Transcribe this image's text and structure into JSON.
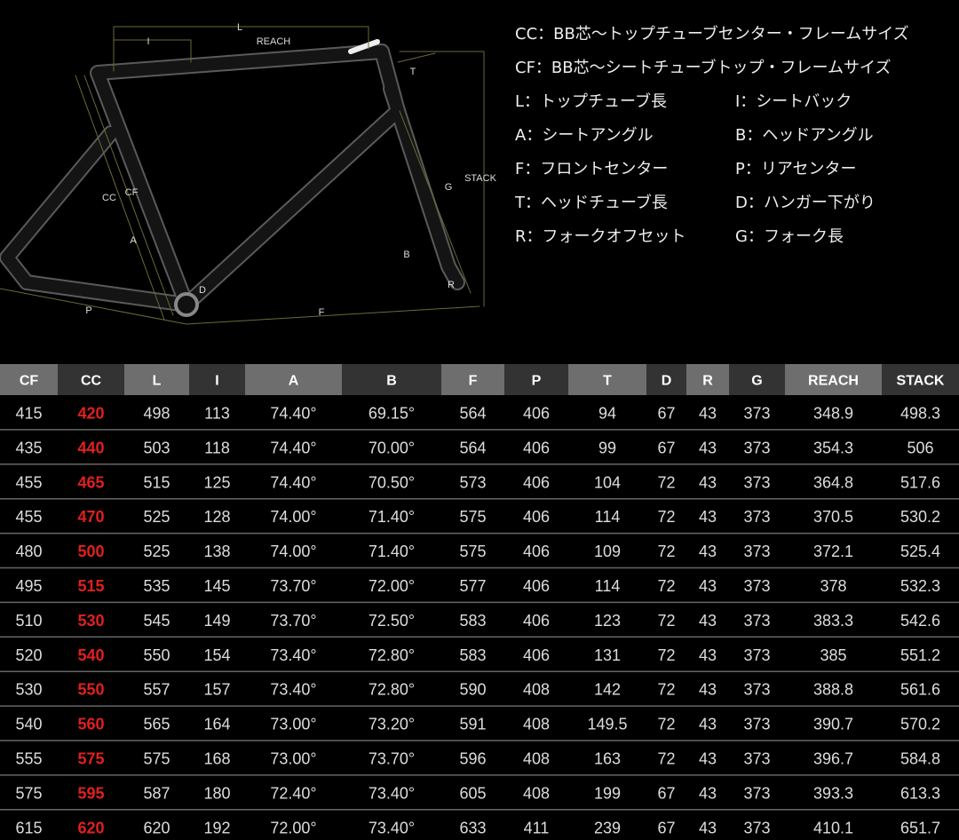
{
  "diagram": {
    "labels": [
      "L",
      "I",
      "REACH",
      "T",
      "STACK",
      "G",
      "CC",
      "CF",
      "A",
      "B",
      "D",
      "R",
      "P",
      "F"
    ]
  },
  "legend": [
    "CC：BB芯〜トップチューブセンター・フレームサイズ",
    "CF：BB芯〜シートチューブトップ・フレームサイズ",
    "L：トップチューブ長",
    "I：シートバック",
    "A：シートアングル",
    "B：ヘッドアングル",
    "F：フロントセンター",
    "P：リアセンター",
    "T：ヘッドチューブ長",
    "D：ハンガー下がり",
    "R：フォークオフセット",
    "G：フォーク長"
  ],
  "table": {
    "header": [
      "CF",
      "CC",
      "L",
      "I",
      "A",
      "B",
      "F",
      "P",
      "T",
      "D",
      "R",
      "G",
      "REACH",
      "STACK"
    ],
    "rows": [
      [
        "415",
        "420",
        "498",
        "113",
        "74.40°",
        "69.15°",
        "564",
        "406",
        "94",
        "67",
        "43",
        "373",
        "348.9",
        "498.3"
      ],
      [
        "435",
        "440",
        "503",
        "118",
        "74.40°",
        "70.00°",
        "564",
        "406",
        "99",
        "67",
        "43",
        "373",
        "354.3",
        "506"
      ],
      [
        "455",
        "465",
        "515",
        "125",
        "74.40°",
        "70.50°",
        "573",
        "406",
        "104",
        "72",
        "43",
        "373",
        "364.8",
        "517.6"
      ],
      [
        "455",
        "470",
        "525",
        "128",
        "74.00°",
        "71.40°",
        "575",
        "406",
        "114",
        "72",
        "43",
        "373",
        "370.5",
        "530.2"
      ],
      [
        "480",
        "500",
        "525",
        "138",
        "74.00°",
        "71.40°",
        "575",
        "406",
        "109",
        "72",
        "43",
        "373",
        "372.1",
        "525.4"
      ],
      [
        "495",
        "515",
        "535",
        "145",
        "73.70°",
        "72.00°",
        "577",
        "406",
        "114",
        "72",
        "43",
        "373",
        "378",
        "532.3"
      ],
      [
        "510",
        "530",
        "545",
        "149",
        "73.70°",
        "72.50°",
        "583",
        "406",
        "123",
        "72",
        "43",
        "373",
        "383.3",
        "542.6"
      ],
      [
        "520",
        "540",
        "550",
        "154",
        "73.40°",
        "72.80°",
        "583",
        "406",
        "131",
        "72",
        "43",
        "373",
        "385",
        "551.2"
      ],
      [
        "530",
        "550",
        "557",
        "157",
        "73.40°",
        "72.80°",
        "590",
        "408",
        "142",
        "72",
        "43",
        "373",
        "388.8",
        "561.6"
      ],
      [
        "540",
        "560",
        "565",
        "164",
        "73.00°",
        "73.20°",
        "591",
        "408",
        "149.5",
        "72",
        "43",
        "373",
        "390.7",
        "570.2"
      ],
      [
        "555",
        "575",
        "575",
        "168",
        "73.00°",
        "73.70°",
        "596",
        "408",
        "163",
        "72",
        "43",
        "373",
        "396.7",
        "584.8"
      ],
      [
        "575",
        "595",
        "587",
        "180",
        "72.40°",
        "73.40°",
        "605",
        "408",
        "199",
        "67",
        "43",
        "373",
        "393.3",
        "613.3"
      ],
      [
        "615",
        "620",
        "620",
        "192",
        "72.00°",
        "73.40°",
        "633",
        "411",
        "239",
        "67",
        "43",
        "373",
        "410.1",
        "651.7"
      ]
    ]
  }
}
